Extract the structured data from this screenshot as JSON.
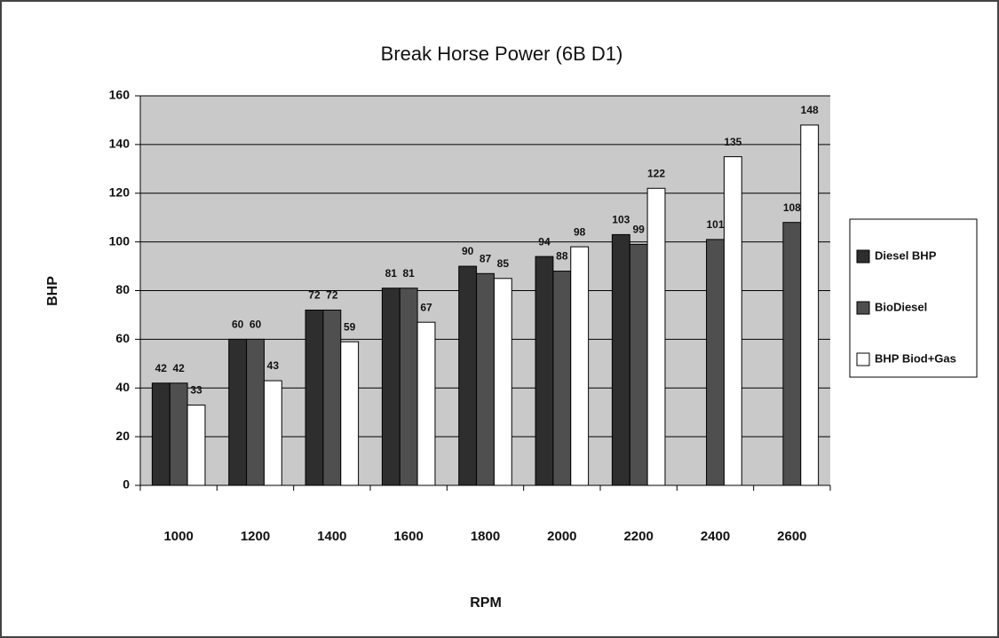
{
  "chart_data": {
    "type": "bar",
    "title": "Break Horse Power (6B D1)",
    "x_label": "RPM",
    "y_label": "BHP",
    "categories": [
      "1000",
      "1200",
      "1400",
      "1600",
      "1800",
      "2000",
      "2200",
      "2400",
      "2600"
    ],
    "series": [
      {
        "name": "Diesel BHP",
        "color": "#2e2e2e",
        "values": [
          42,
          60,
          72,
          81,
          90,
          94,
          103,
          null,
          null
        ]
      },
      {
        "name": "BioDiesel",
        "color": "#4f4f4f",
        "values": [
          42,
          60,
          72,
          81,
          87,
          88,
          99,
          101,
          108
        ]
      },
      {
        "name": "BHP Biod+Gas",
        "color": "#ffffff",
        "values": [
          33,
          43,
          59,
          67,
          85,
          98,
          122,
          135,
          148
        ]
      }
    ],
    "ylim": [
      0,
      160
    ],
    "yticks": [
      0,
      20,
      40,
      60,
      80,
      100,
      120,
      140,
      160
    ],
    "grid": true,
    "legend": "right"
  }
}
